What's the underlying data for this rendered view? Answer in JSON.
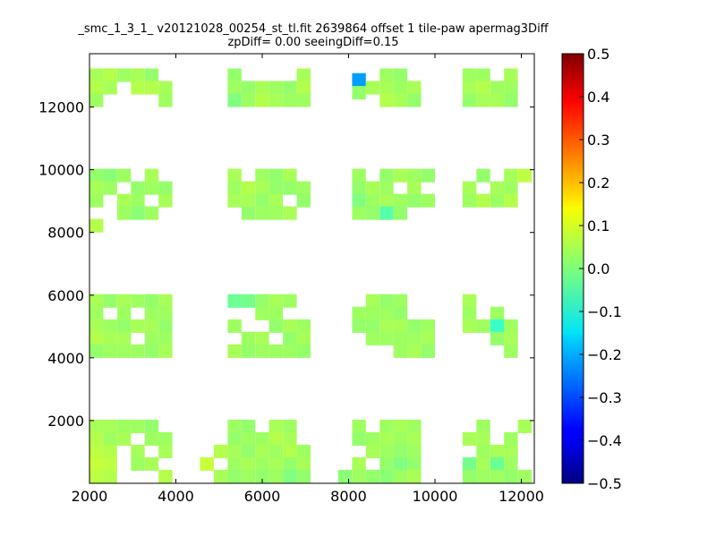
{
  "chart_data": {
    "type": "heatmap",
    "title_line1": "_smc_1_3_1_ v20121028_00254_st_tl.fit 2639864 offset 1 tile-paw apermag3Diff",
    "title_line2": "zpDiff= 0.00 seeingDiff=0.15",
    "xlim": [
      2000,
      12300
    ],
    "ylim": [
      0,
      13700
    ],
    "x_ticks": [
      2000,
      4000,
      6000,
      8000,
      10000,
      12000
    ],
    "y_ticks": [
      2000,
      4000,
      6000,
      8000,
      10000,
      12000
    ],
    "colorbar": {
      "min": -0.5,
      "max": 0.5,
      "ticks": [
        0.5,
        0.4,
        0.3,
        0.2,
        0.1,
        0.0,
        -0.1,
        -0.2,
        -0.3,
        -0.4,
        -0.5
      ],
      "tick_labels": [
        "0.5",
        "0.4",
        "0.3",
        "0.2",
        "0.1",
        "0.0",
        "−0.1",
        "−0.2",
        "−0.3",
        "−0.4",
        "−0.5"
      ],
      "colormap": "jet"
    },
    "grid": false,
    "cell_size": [
      320,
      430
    ],
    "cells": [
      [
        2160,
        12800,
        0.04
      ],
      [
        2160,
        12400,
        0.05
      ],
      [
        2160,
        12000,
        0.03
      ],
      [
        2480,
        12800,
        0.05
      ],
      [
        2480,
        12400,
        0.04
      ],
      [
        2800,
        12800,
        0.03
      ],
      [
        3120,
        12800,
        0.04
      ],
      [
        3120,
        12400,
        0.05
      ],
      [
        3440,
        12800,
        0.02
      ],
      [
        3440,
        12400,
        0.05
      ],
      [
        3760,
        12400,
        0.04
      ],
      [
        3760,
        12000,
        0.03
      ],
      [
        5360,
        12800,
        0.02
      ],
      [
        5360,
        12400,
        0.03
      ],
      [
        5360,
        12000,
        0.0
      ],
      [
        5680,
        12400,
        0.02
      ],
      [
        5680,
        12000,
        0.03
      ],
      [
        6000,
        12400,
        0.04
      ],
      [
        6000,
        12000,
        0.05
      ],
      [
        6320,
        12400,
        0.03
      ],
      [
        6320,
        12000,
        0.04
      ],
      [
        6640,
        12400,
        0.02
      ],
      [
        6640,
        12000,
        0.03
      ],
      [
        6960,
        12800,
        0.04
      ],
      [
        6960,
        12400,
        0.05
      ],
      [
        6960,
        12000,
        0.03
      ],
      [
        8240,
        12650,
        -0.22
      ],
      [
        8240,
        12240,
        0.02
      ],
      [
        8560,
        12400,
        0.04
      ],
      [
        8880,
        12800,
        0.03
      ],
      [
        8880,
        12400,
        0.04
      ],
      [
        8880,
        12000,
        0.05
      ],
      [
        9200,
        12800,
        0.02
      ],
      [
        9200,
        12400,
        0.03
      ],
      [
        9200,
        12000,
        0.04
      ],
      [
        9520,
        12400,
        0.04
      ],
      [
        9520,
        12000,
        0.02
      ],
      [
        10800,
        12800,
        0.03
      ],
      [
        10800,
        12400,
        0.04
      ],
      [
        10800,
        12000,
        0.02
      ],
      [
        11120,
        12800,
        0.03
      ],
      [
        11120,
        12400,
        0.05
      ],
      [
        11120,
        12000,
        0.04
      ],
      [
        11440,
        12400,
        0.03
      ],
      [
        11440,
        12000,
        0.04
      ],
      [
        11760,
        12800,
        0.04
      ],
      [
        11760,
        12400,
        0.03
      ],
      [
        11760,
        12000,
        0.02
      ],
      [
        2160,
        9600,
        0.02
      ],
      [
        2160,
        9200,
        0.04
      ],
      [
        2160,
        8800,
        0.03
      ],
      [
        2160,
        8000,
        0.05
      ],
      [
        2480,
        9600,
        0.01
      ],
      [
        2480,
        9200,
        0.03
      ],
      [
        2800,
        9600,
        0.03
      ],
      [
        2800,
        8800,
        0.04
      ],
      [
        2800,
        8400,
        0.03
      ],
      [
        3120,
        9200,
        0.02
      ],
      [
        3120,
        8800,
        0.03
      ],
      [
        3120,
        8400,
        0.01
      ],
      [
        3440,
        9600,
        0.04
      ],
      [
        3440,
        9200,
        0.03
      ],
      [
        3440,
        8400,
        0.03
      ],
      [
        3760,
        9200,
        0.02
      ],
      [
        3760,
        8800,
        0.04
      ],
      [
        5360,
        9600,
        0.04
      ],
      [
        5360,
        9200,
        0.03
      ],
      [
        5360,
        8800,
        0.04
      ],
      [
        5680,
        9200,
        0.05
      ],
      [
        5680,
        8800,
        0.04
      ],
      [
        5680,
        8400,
        0.02
      ],
      [
        6000,
        9600,
        0.03
      ],
      [
        6000,
        9200,
        0.04
      ],
      [
        6000,
        8800,
        0.02
      ],
      [
        6000,
        8400,
        0.03
      ],
      [
        6320,
        9600,
        0.02
      ],
      [
        6320,
        9200,
        0.02
      ],
      [
        6320,
        8800,
        0.04
      ],
      [
        6320,
        8400,
        0.03
      ],
      [
        6640,
        9600,
        0.04
      ],
      [
        6640,
        9200,
        0.02
      ],
      [
        6640,
        8400,
        0.04
      ],
      [
        6960,
        9200,
        0.03
      ],
      [
        6960,
        8800,
        0.02
      ],
      [
        8240,
        9600,
        0.03
      ],
      [
        8240,
        9200,
        0.02
      ],
      [
        8240,
        8800,
        0.0
      ],
      [
        8240,
        8400,
        0.03
      ],
      [
        8560,
        9200,
        0.04
      ],
      [
        8560,
        8800,
        0.03
      ],
      [
        8560,
        8400,
        0.02
      ],
      [
        8880,
        9600,
        0.02
      ],
      [
        8880,
        9200,
        0.03
      ],
      [
        8880,
        8800,
        0.04
      ],
      [
        8880,
        8400,
        -0.04
      ],
      [
        9200,
        9600,
        0.04
      ],
      [
        9200,
        8800,
        0.03
      ],
      [
        9200,
        8400,
        0.02
      ],
      [
        9520,
        9600,
        0.03
      ],
      [
        9520,
        9200,
        0.04
      ],
      [
        9520,
        8800,
        0.02
      ],
      [
        9840,
        9600,
        0.02
      ],
      [
        9840,
        8800,
        0.03
      ],
      [
        10800,
        9200,
        0.04
      ],
      [
        10800,
        8800,
        0.03
      ],
      [
        11120,
        9600,
        0.02
      ],
      [
        11120,
        8800,
        0.05
      ],
      [
        11440,
        9200,
        0.04
      ],
      [
        11440,
        8800,
        0.03
      ],
      [
        11760,
        9600,
        0.04
      ],
      [
        11760,
        9200,
        0.03
      ],
      [
        11760,
        8800,
        0.05
      ],
      [
        12080,
        9600,
        0.06
      ],
      [
        2160,
        5600,
        0.04
      ],
      [
        2160,
        5200,
        0.03
      ],
      [
        2160,
        4800,
        0.04
      ],
      [
        2160,
        4400,
        0.05
      ],
      [
        2160,
        4000,
        0.02
      ],
      [
        2480,
        5600,
        0.02
      ],
      [
        2480,
        4800,
        0.03
      ],
      [
        2480,
        4400,
        0.04
      ],
      [
        2480,
        4000,
        0.03
      ],
      [
        2800,
        5600,
        0.04
      ],
      [
        2800,
        5200,
        0.03
      ],
      [
        2800,
        4800,
        0.02
      ],
      [
        2800,
        4400,
        0.04
      ],
      [
        2800,
        4000,
        0.03
      ],
      [
        3120,
        5600,
        0.03
      ],
      [
        3120,
        4800,
        0.04
      ],
      [
        3120,
        4000,
        0.03
      ],
      [
        3440,
        5600,
        0.02
      ],
      [
        3440,
        5200,
        0.03
      ],
      [
        3440,
        4800,
        0.04
      ],
      [
        3440,
        4400,
        0.03
      ],
      [
        3440,
        4000,
        0.02
      ],
      [
        3760,
        5600,
        0.04
      ],
      [
        3760,
        5200,
        0.03
      ],
      [
        3760,
        4800,
        0.02
      ],
      [
        3760,
        4400,
        0.03
      ],
      [
        3760,
        4000,
        0.04
      ],
      [
        5360,
        5600,
        -0.02
      ],
      [
        5360,
        4800,
        0.03
      ],
      [
        5360,
        4000,
        0.04
      ],
      [
        5680,
        5600,
        -0.01
      ],
      [
        5680,
        4400,
        0.03
      ],
      [
        5680,
        4000,
        0.02
      ],
      [
        6000,
        5600,
        0.02
      ],
      [
        6000,
        5200,
        0.03
      ],
      [
        6000,
        4400,
        0.04
      ],
      [
        6000,
        4000,
        0.03
      ],
      [
        6320,
        5600,
        0.04
      ],
      [
        6320,
        5200,
        0.03
      ],
      [
        6320,
        4800,
        0.02
      ],
      [
        6320,
        4000,
        0.03
      ],
      [
        6640,
        5600,
        0.03
      ],
      [
        6640,
        4800,
        0.04
      ],
      [
        6640,
        4400,
        0.02
      ],
      [
        6640,
        4000,
        0.03
      ],
      [
        6960,
        4800,
        0.03
      ],
      [
        6960,
        4400,
        0.04
      ],
      [
        6960,
        4000,
        0.02
      ],
      [
        8240,
        5200,
        0.03
      ],
      [
        8240,
        4800,
        0.02
      ],
      [
        8560,
        5600,
        0.04
      ],
      [
        8560,
        5200,
        0.03
      ],
      [
        8560,
        4800,
        0.02
      ],
      [
        8560,
        4400,
        0.03
      ],
      [
        8880,
        5600,
        0.02
      ],
      [
        8880,
        5200,
        0.03
      ],
      [
        8880,
        4800,
        0.04
      ],
      [
        8880,
        4400,
        0.03
      ],
      [
        9200,
        5600,
        0.03
      ],
      [
        9200,
        5200,
        0.02
      ],
      [
        9200,
        4800,
        0.04
      ],
      [
        9200,
        4400,
        0.03
      ],
      [
        9520,
        4800,
        0.02
      ],
      [
        9520,
        4400,
        0.03
      ],
      [
        9520,
        4000,
        0.04
      ],
      [
        9200,
        4000,
        0.03
      ],
      [
        9840,
        4800,
        0.03
      ],
      [
        9840,
        4400,
        0.04
      ],
      [
        9840,
        4000,
        0.02
      ],
      [
        10800,
        5600,
        0.04
      ],
      [
        10800,
        5200,
        0.03
      ],
      [
        10800,
        4800,
        0.04
      ],
      [
        11120,
        4800,
        0.03
      ],
      [
        11440,
        5200,
        0.03
      ],
      [
        11440,
        4800,
        -0.07
      ],
      [
        11440,
        4400,
        0.02
      ],
      [
        11760,
        4800,
        0.03
      ],
      [
        11760,
        4400,
        0.04
      ],
      [
        11760,
        4000,
        0.03
      ],
      [
        2160,
        1600,
        0.04
      ],
      [
        2160,
        1200,
        0.05
      ],
      [
        2160,
        800,
        0.06
      ],
      [
        2160,
        400,
        0.07
      ],
      [
        2160,
        0,
        0.06
      ],
      [
        2480,
        1600,
        0.04
      ],
      [
        2480,
        1200,
        0.03
      ],
      [
        2480,
        800,
        0.05
      ],
      [
        2480,
        400,
        0.06
      ],
      [
        2480,
        0,
        0.05
      ],
      [
        2800,
        1600,
        0.03
      ],
      [
        2800,
        1200,
        0.04
      ],
      [
        3120,
        1600,
        0.03
      ],
      [
        3120,
        800,
        0.04
      ],
      [
        3120,
        400,
        0.03
      ],
      [
        3440,
        1600,
        0.02
      ],
      [
        3440,
        1200,
        0.03
      ],
      [
        3440,
        400,
        0.04
      ],
      [
        3760,
        1200,
        0.03
      ],
      [
        3760,
        800,
        0.04
      ],
      [
        3760,
        0,
        0.05
      ],
      [
        4720,
        400,
        0.07
      ],
      [
        5040,
        800,
        0.05
      ],
      [
        5040,
        0,
        0.04
      ],
      [
        5360,
        1600,
        0.03
      ],
      [
        5360,
        1200,
        0.02
      ],
      [
        5360,
        800,
        0.04
      ],
      [
        5360,
        400,
        0.03
      ],
      [
        5360,
        0,
        0.02
      ],
      [
        5680,
        1600,
        0.02
      ],
      [
        5680,
        1200,
        0.03
      ],
      [
        5680,
        800,
        0.02
      ],
      [
        5680,
        400,
        0.04
      ],
      [
        5680,
        0,
        0.03
      ],
      [
        6000,
        1200,
        0.03
      ],
      [
        6000,
        800,
        0.04
      ],
      [
        6000,
        400,
        0.03
      ],
      [
        6000,
        0,
        0.02
      ],
      [
        6320,
        1600,
        0.04
      ],
      [
        6320,
        1200,
        0.05
      ],
      [
        6320,
        800,
        0.03
      ],
      [
        6320,
        400,
        0.04
      ],
      [
        6320,
        0,
        0.03
      ],
      [
        6640,
        1600,
        0.03
      ],
      [
        6640,
        1200,
        0.04
      ],
      [
        6640,
        800,
        0.05
      ],
      [
        6640,
        400,
        0.02
      ],
      [
        6640,
        0,
        0.0
      ],
      [
        6960,
        800,
        0.03
      ],
      [
        6960,
        400,
        0.04
      ],
      [
        6960,
        0,
        0.02
      ],
      [
        7920,
        0,
        0.01
      ],
      [
        8240,
        1600,
        0.03
      ],
      [
        8240,
        1200,
        0.02
      ],
      [
        8240,
        400,
        0.04
      ],
      [
        8240,
        0,
        0.03
      ],
      [
        8560,
        1200,
        0.03
      ],
      [
        8560,
        800,
        0.04
      ],
      [
        8560,
        0,
        0.02
      ],
      [
        8880,
        1600,
        0.03
      ],
      [
        8880,
        1200,
        0.04
      ],
      [
        8880,
        800,
        0.03
      ],
      [
        8880,
        400,
        0.02
      ],
      [
        8880,
        0,
        0.01
      ],
      [
        9200,
        1600,
        0.04
      ],
      [
        9200,
        1200,
        0.03
      ],
      [
        9200,
        800,
        0.02
      ],
      [
        9200,
        400,
        0.0
      ],
      [
        9200,
        0,
        0.03
      ],
      [
        9520,
        1600,
        0.03
      ],
      [
        9520,
        1200,
        0.04
      ],
      [
        9520,
        800,
        0.03
      ],
      [
        9520,
        400,
        0.02
      ],
      [
        9520,
        0,
        0.04
      ],
      [
        10800,
        1200,
        0.04
      ],
      [
        10800,
        400,
        -0.01
      ],
      [
        10800,
        0,
        0.02
      ],
      [
        11120,
        1600,
        0.03
      ],
      [
        11120,
        1200,
        0.04
      ],
      [
        11120,
        800,
        0.03
      ],
      [
        11120,
        400,
        0.04
      ],
      [
        11120,
        0,
        0.03
      ],
      [
        11440,
        800,
        0.04
      ],
      [
        11440,
        400,
        -0.02
      ],
      [
        11440,
        0,
        0.03
      ],
      [
        11760,
        1200,
        0.03
      ],
      [
        11760,
        800,
        0.04
      ],
      [
        11760,
        400,
        0.03
      ],
      [
        11760,
        0,
        0.02
      ],
      [
        12080,
        1600,
        0.04
      ],
      [
        12080,
        0,
        0.03
      ]
    ]
  }
}
